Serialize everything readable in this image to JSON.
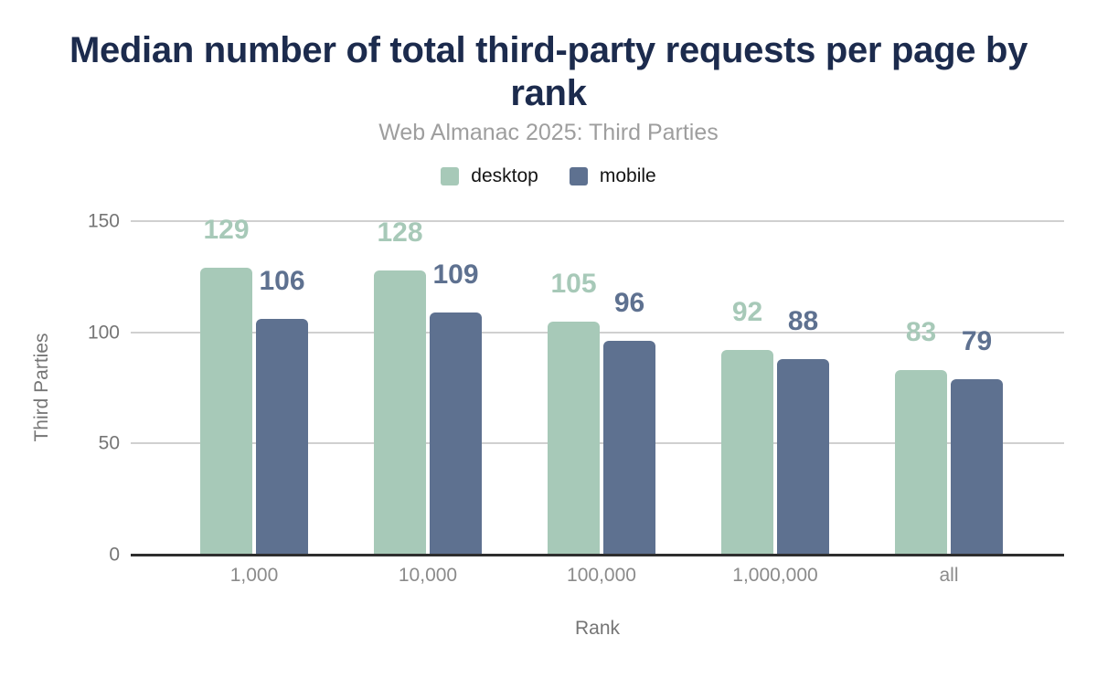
{
  "chart": {
    "title": "Median number of total third-party requests per page by rank",
    "subtitle": "Web Almanac 2025: Third Parties",
    "x_axis_title": "Rank",
    "y_axis_title": "Third Parties"
  },
  "legend": {
    "items": [
      {
        "label": "desktop",
        "color": "#a7c9b8"
      },
      {
        "label": "mobile",
        "color": "#5e7190"
      }
    ]
  },
  "chart_data": {
    "type": "bar",
    "categories": [
      "1,000",
      "10,000",
      "100,000",
      "1,000,000",
      "all"
    ],
    "series": [
      {
        "name": "desktop",
        "color": "#a7c9b8",
        "values": [
          129,
          128,
          105,
          92,
          83
        ]
      },
      {
        "name": "mobile",
        "color": "#5e7190",
        "values": [
          106,
          109,
          96,
          88,
          79
        ]
      }
    ],
    "title": "Median number of total third-party requests per page by rank",
    "subtitle": "Web Almanac 2025: Third Parties",
    "xlabel": "Rank",
    "ylabel": "Third Parties",
    "ylim": [
      0,
      150
    ],
    "yticks": [
      0,
      50,
      100,
      150
    ],
    "grid": true,
    "legend_position": "top",
    "value_labels": true
  },
  "colors": {
    "title": "#1c2b4d",
    "subtitle": "#9e9e9e",
    "grid": "#d0d0d0",
    "axis_line": "#2e2e2e",
    "tick_label": "#757575",
    "category_label": "#8b8b8b",
    "axis_title": "#757575",
    "background": "#ffffff"
  }
}
